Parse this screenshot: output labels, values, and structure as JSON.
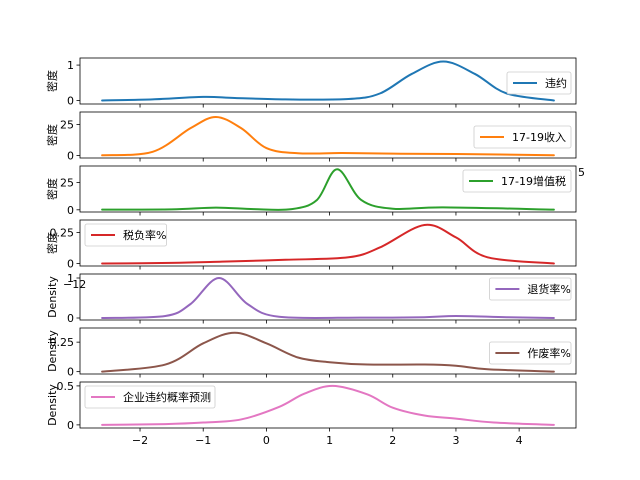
{
  "chart_data": [
    {
      "type": "line",
      "series": [
        {
          "name": "违约",
          "color": "#1f77b4",
          "points": [
            [
              -2.6,
              0.0
            ],
            [
              -1.8,
              0.03
            ],
            [
              -1.0,
              0.1
            ],
            [
              -0.5,
              0.07
            ],
            [
              0.3,
              0.03
            ],
            [
              1.3,
              0.04
            ],
            [
              1.8,
              0.2
            ],
            [
              2.3,
              0.75
            ],
            [
              2.8,
              1.1
            ],
            [
              3.3,
              0.75
            ],
            [
              3.8,
              0.2
            ],
            [
              4.55,
              0.0
            ]
          ]
        }
      ],
      "ylabel": "密度",
      "yticks": [
        0,
        1
      ],
      "ylim": [
        -0.1,
        1.2
      ],
      "xlim": [
        -2.95,
        4.9
      ],
      "xticks": [],
      "legend_loc": "center-right"
    },
    {
      "type": "line",
      "series": [
        {
          "name": "17-19收入",
          "color": "#ff7f0e",
          "points": [
            [
              -2.6,
              0.2
            ],
            [
              -1.8,
              3
            ],
            [
              -1.2,
              22
            ],
            [
              -0.8,
              31
            ],
            [
              -0.4,
              22
            ],
            [
              0.0,
              6
            ],
            [
              0.5,
              1.8
            ],
            [
              1.2,
              2.0
            ],
            [
              2.0,
              1.5
            ],
            [
              3.0,
              1.2
            ],
            [
              4.55,
              0.2
            ]
          ]
        }
      ],
      "ylabel": "密度",
      "yticks": [
        0,
        25
      ],
      "ylim": [
        -2,
        35
      ],
      "xlim": [
        -2.95,
        4.9
      ],
      "xticks": [],
      "legend_loc": "center-right"
    },
    {
      "type": "line",
      "series": [
        {
          "name": "17-19增值税",
          "color": "#2ca02c",
          "points": [
            [
              -2.6,
              0.2
            ],
            [
              -1.5,
              0.4
            ],
            [
              -0.8,
              2
            ],
            [
              -0.2,
              0.6
            ],
            [
              0.4,
              0.6
            ],
            [
              0.8,
              9
            ],
            [
              1.12,
              37
            ],
            [
              1.5,
              9
            ],
            [
              2.0,
              1.0
            ],
            [
              2.8,
              2.2
            ],
            [
              4.55,
              0.2
            ]
          ]
        }
      ],
      "ylabel": "密度",
      "yticks": [
        0,
        25
      ],
      "ylim": [
        -2,
        40
      ],
      "xlim": [
        -2.95,
        4.9
      ],
      "xticks": [],
      "legend_loc": "upper-right"
    },
    {
      "type": "line",
      "series": [
        {
          "name": "税负率%",
          "color": "#d62728",
          "points": [
            [
              -2.6,
              0.0
            ],
            [
              -1.5,
              0.005
            ],
            [
              -0.7,
              0.015
            ],
            [
              0.3,
              0.03
            ],
            [
              1.3,
              0.05
            ],
            [
              1.8,
              0.13
            ],
            [
              2.5,
              0.31
            ],
            [
              3.0,
              0.21
            ],
            [
              3.5,
              0.05
            ],
            [
              4.55,
              0.0
            ]
          ]
        }
      ],
      "ylabel": "密度",
      "yticks": [
        0.0,
        0.25
      ],
      "ylim": [
        -0.02,
        0.35
      ],
      "xlim": [
        -2.95,
        4.9
      ],
      "xticks": [],
      "legend_loc": "upper-left"
    },
    {
      "type": "line",
      "series": [
        {
          "name": "退货率%",
          "color": "#9467bd",
          "points": [
            [
              -2.6,
              0.0
            ],
            [
              -1.6,
              0.05
            ],
            [
              -1.2,
              0.35
            ],
            [
              -0.75,
              1.0
            ],
            [
              -0.3,
              0.35
            ],
            [
              0.2,
              0.03
            ],
            [
              1.5,
              0.01
            ],
            [
              2.5,
              0.02
            ],
            [
              3.0,
              0.05
            ],
            [
              3.8,
              0.02
            ],
            [
              4.55,
              0.0
            ]
          ]
        }
      ],
      "ylabel": "Density",
      "yticks": [
        0,
        1
      ],
      "ylim": [
        -0.05,
        1.1
      ],
      "xlim": [
        -2.95,
        4.9
      ],
      "xticks": [],
      "legend_loc": "upper-right"
    },
    {
      "type": "line",
      "series": [
        {
          "name": "作废率%",
          "color": "#8c564b",
          "points": [
            [
              -2.6,
              0.0
            ],
            [
              -1.6,
              0.06
            ],
            [
              -1.0,
              0.24
            ],
            [
              -0.5,
              0.33
            ],
            [
              0.0,
              0.24
            ],
            [
              0.5,
              0.12
            ],
            [
              1.0,
              0.08
            ],
            [
              1.6,
              0.06
            ],
            [
              2.5,
              0.06
            ],
            [
              3.0,
              0.05
            ],
            [
              3.5,
              0.02
            ],
            [
              4.55,
              0.0
            ]
          ]
        }
      ],
      "ylabel": "Density",
      "yticks": [
        0.0,
        0.25
      ],
      "ylim": [
        -0.02,
        0.37
      ],
      "xlim": [
        -2.95,
        4.9
      ],
      "xticks": [],
      "legend_loc": "center-right"
    },
    {
      "type": "line",
      "series": [
        {
          "name": "企业违约概率预测",
          "color": "#e377c2",
          "points": [
            [
              -2.6,
              0.0
            ],
            [
              -1.6,
              0.01
            ],
            [
              -1.0,
              0.03
            ],
            [
              -0.4,
              0.07
            ],
            [
              0.2,
              0.23
            ],
            [
              0.6,
              0.4
            ],
            [
              1.05,
              0.5
            ],
            [
              1.6,
              0.39
            ],
            [
              2.0,
              0.22
            ],
            [
              2.5,
              0.12
            ],
            [
              3.0,
              0.08
            ],
            [
              3.6,
              0.03
            ],
            [
              4.55,
              0.0
            ]
          ]
        }
      ],
      "ylabel": "Density",
      "yticks": [
        0.0,
        0.5
      ],
      "ylim": [
        -0.04,
        0.55
      ],
      "xlim": [
        -2.95,
        4.9
      ],
      "xticks": [
        -2,
        -1,
        0,
        1,
        2,
        3,
        4
      ],
      "legend_loc": "upper-left"
    }
  ],
  "stray_labels": {
    "right_of_panel_2": "5",
    "left_of_panel_5": "−12"
  }
}
